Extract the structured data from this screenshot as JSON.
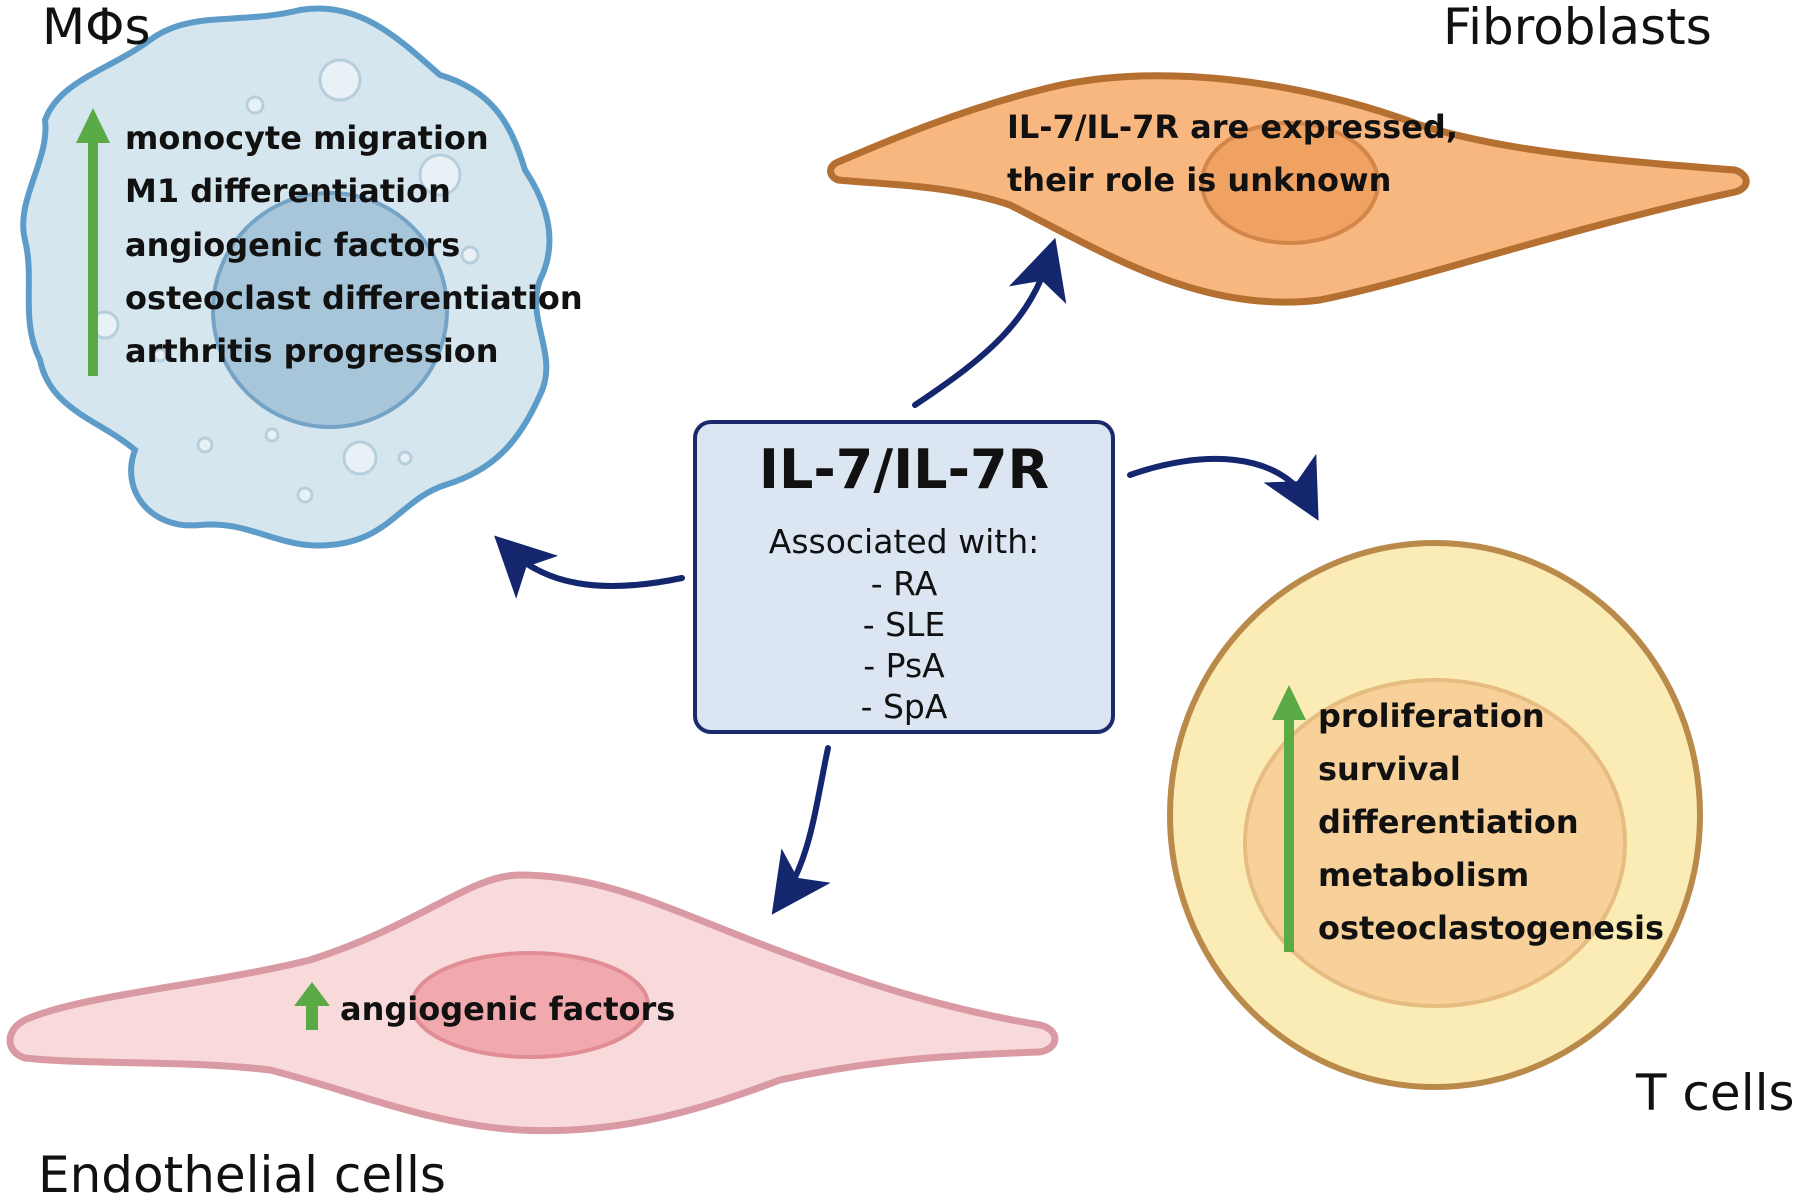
{
  "macrophage": {
    "title": "MΦs",
    "items": [
      "monocyte migration",
      "M1 differentiation",
      "angiogenic factors",
      "osteoclast differentiation",
      "arthritis progression"
    ]
  },
  "fibroblast": {
    "title": "Fibroblasts",
    "lines": [
      "IL-7/IL-7R are expressed,",
      "their role is unknown"
    ]
  },
  "center": {
    "title": "IL-7/IL-7R",
    "subtitle": "Associated with:",
    "items": [
      "- RA",
      "- SLE",
      "- PsA",
      "- SpA"
    ]
  },
  "tcell": {
    "title": "T cells",
    "items": [
      "proliferation",
      "survival",
      "differentiation",
      "metabolism",
      "osteoclastogenesis"
    ]
  },
  "endothelial": {
    "title": "Endothelial cells",
    "items": [
      "angiogenic factors"
    ]
  },
  "colors": {
    "arrow": "#14266e",
    "up_arrow": "#5aaa46",
    "macrophage_fill": "#d6e6ee",
    "macrophage_stroke": "#5d9cc8",
    "fibroblast_fill": "#f8b77f",
    "fibroblast_stroke": "#b56f30",
    "tcell_fill": "#fbecb6",
    "tcell_stroke": "#b98a4a",
    "endothelial_fill": "#f9dadb",
    "endothelial_stroke": "#d99aa4",
    "center_fill": "#dce6f2",
    "center_stroke": "#1b2a6b"
  }
}
